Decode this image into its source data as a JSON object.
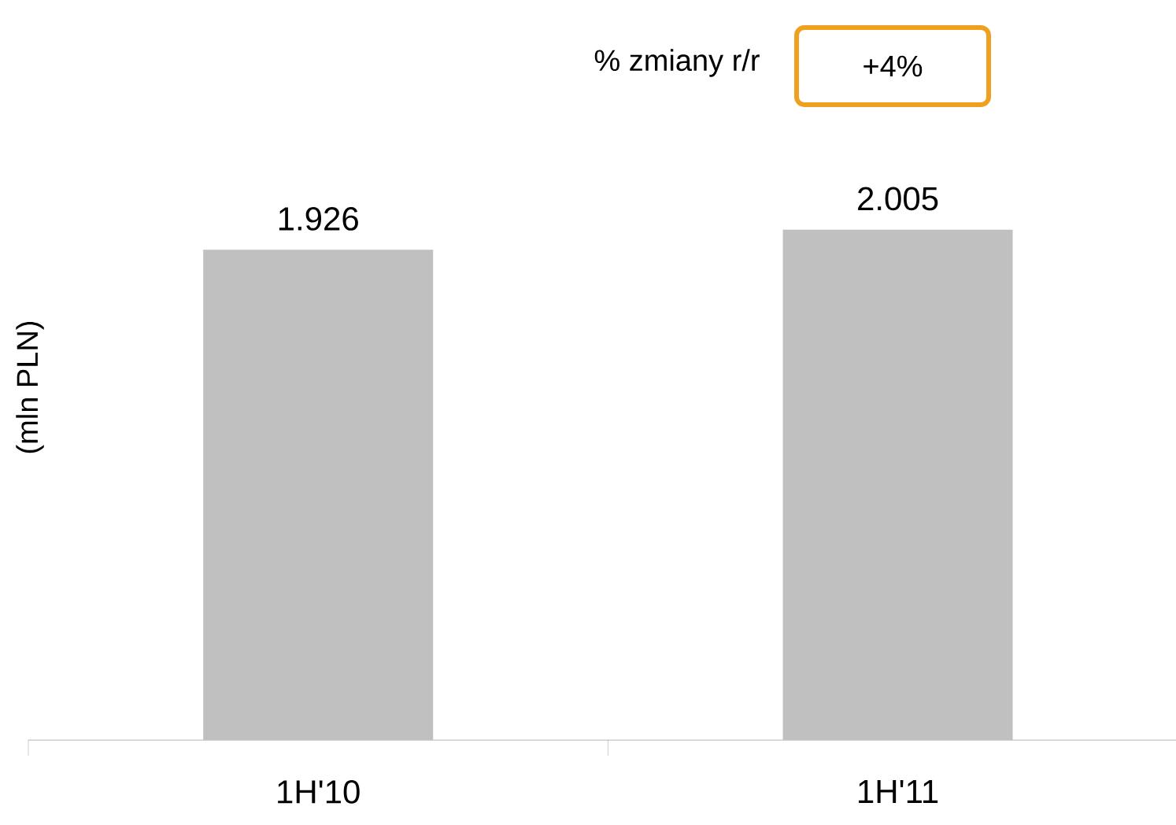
{
  "chart_data": {
    "type": "bar",
    "ylabel": "(mln PLN)",
    "categories": [
      "1H'10",
      "1H'11"
    ],
    "values": [
      1926,
      2005
    ],
    "value_labels": [
      "1.926",
      "2.005"
    ],
    "color": "#c0c0c0",
    "grid": false,
    "annotations": [
      "% zmiany r/r",
      "+4%"
    ]
  }
}
